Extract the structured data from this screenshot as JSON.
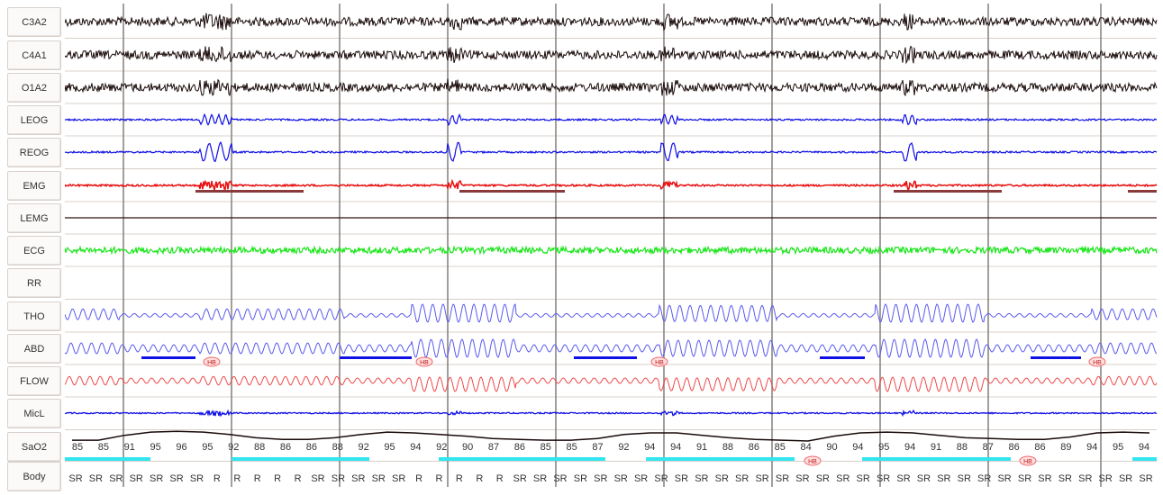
{
  "channels": [
    {
      "label": "C3A2",
      "kind": "eeg",
      "color": "#1a0a0a"
    },
    {
      "label": "C4A1",
      "kind": "eeg",
      "color": "#1a0a0a"
    },
    {
      "label": "O1A2",
      "kind": "eeg",
      "color": "#1a0a0a"
    },
    {
      "label": "LEOG",
      "kind": "eog",
      "color": "#1010e6"
    },
    {
      "label": "REOG",
      "kind": "eog",
      "color": "#1010e6"
    },
    {
      "label": "EMG",
      "kind": "emg",
      "color": "#e81010"
    },
    {
      "label": "LEMG",
      "kind": "flat",
      "color": "#2a1010"
    },
    {
      "label": "ECG",
      "kind": "ecg",
      "color": "#19e619"
    },
    {
      "label": "RR",
      "kind": "empty",
      "color": "#000000"
    },
    {
      "label": "THO",
      "kind": "resp",
      "color": "#5a5aee"
    },
    {
      "label": "ABD",
      "kind": "resp",
      "color": "#5a5aee"
    },
    {
      "label": "FLOW",
      "kind": "flow",
      "color": "#ee4a4a"
    },
    {
      "label": "MicL",
      "kind": "mic",
      "color": "#1010e6"
    },
    {
      "label": "SaO2",
      "kind": "sao2",
      "color": "#1a0a0a"
    },
    {
      "label": "Body",
      "kind": "body",
      "color": "#000000"
    }
  ],
  "colors": {
    "epoch_line": "#8c8680",
    "grid_line": "#d8d0cb",
    "apnea_bar": "#1010e6",
    "emg_bar": "#8a3a3a",
    "cyan_bar": "#33e5f0",
    "event_tag": "#f06a6a"
  },
  "sao2_values": [
    "85",
    "85",
    "91",
    "95",
    "96",
    "95",
    "92",
    "88",
    "86",
    "86",
    "88",
    "92",
    "95",
    "94",
    "92",
    "90",
    "87",
    "86",
    "85",
    "85",
    "87",
    "92",
    "94",
    "94",
    "91",
    "88",
    "86",
    "85",
    "84",
    "90",
    "94",
    "95",
    "94",
    "91",
    "88",
    "87",
    "86",
    "86",
    "89",
    "94",
    "95",
    "94"
  ],
  "body_positions": [
    "SR",
    "SR",
    "SR",
    "SR",
    "SR",
    "SR",
    "SR",
    "R",
    "R",
    "R",
    "R",
    "R",
    "SR",
    "SR",
    "SR",
    "SR",
    "SR",
    "R",
    "R",
    "R",
    "R",
    "R",
    "SR",
    "SR",
    "SR",
    "SR",
    "SR",
    "SR",
    "SR",
    "SR",
    "SR",
    "SR",
    "SR",
    "SR",
    "SR",
    "SR",
    "SR",
    "SR",
    "SR",
    "SR",
    "SR",
    "SR",
    "SR",
    "SR",
    "SR",
    "SR",
    "SR",
    "SR",
    "SR",
    "SR",
    "SR",
    "SR",
    "SR",
    "SR"
  ],
  "event_tag_label": "HB"
}
